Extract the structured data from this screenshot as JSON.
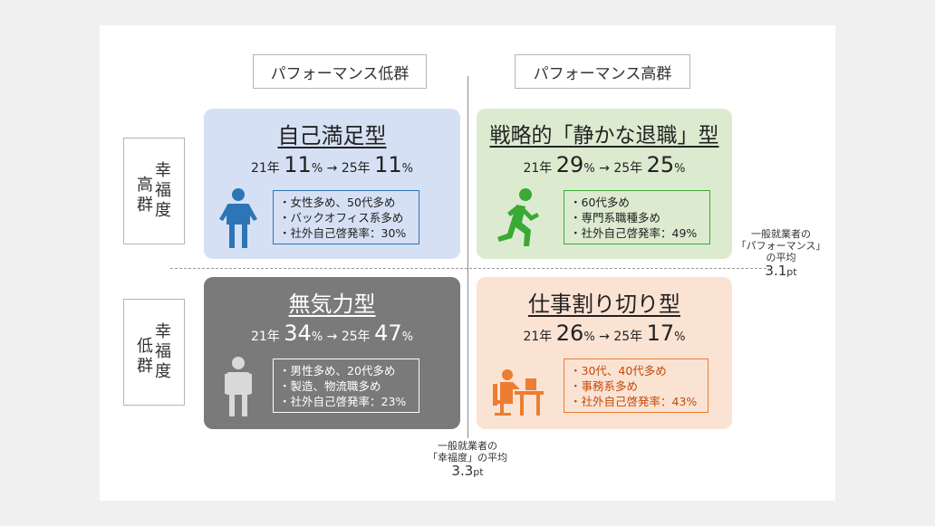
{
  "col_headers": {
    "low": "パフォーマンス低群",
    "high": "パフォーマンス高群"
  },
  "row_headers": {
    "high": {
      "group": "高群",
      "label": "幸福度"
    },
    "low": {
      "group": "低群",
      "label": "幸福度"
    }
  },
  "quadrants": {
    "top_left": {
      "title": "自己満足型",
      "rate": {
        "y1": "21年",
        "v1": "11",
        "y2": "25年",
        "v2": "11",
        "unit": "%",
        "arrow": "→"
      },
      "bullets": [
        "・女性多め、50代多め",
        "・バックオフィス系多め",
        "・社外自己啓発率：30%"
      ],
      "icon": "person-shrug-icon",
      "color": "#2e75b6"
    },
    "top_right": {
      "title": "戦略的「静かな退職」型",
      "rate": {
        "y1": "21年",
        "v1": "29",
        "y2": "25年",
        "v2": "25",
        "unit": "%",
        "arrow": "→"
      },
      "bullets": [
        "・60代多め",
        "・専門系職種多め",
        "・社外自己啓発率：49%"
      ],
      "icon": "running-person-icon",
      "color": "#3aa935"
    },
    "bottom_left": {
      "title": "無気力型",
      "rate": {
        "y1": "21年",
        "v1": "34",
        "y2": "25年",
        "v2": "47",
        "unit": "%",
        "arrow": "→"
      },
      "bullets": [
        "・男性多め、20代多め",
        "・製造、物流職多め",
        "・社外自己啓発率：23%"
      ],
      "icon": "standing-person-icon",
      "color": "#d9d9d9"
    },
    "bottom_right": {
      "title": "仕事割り切り型",
      "rate": {
        "y1": "21年",
        "v1": "26",
        "y2": "25年",
        "v2": "17",
        "unit": "%",
        "arrow": "→"
      },
      "bullets": [
        "・30代、40代多め",
        "・事務系多め",
        "・社外自己啓発率：43%"
      ],
      "icon": "desk-worker-icon",
      "color": "#ed7d31"
    }
  },
  "notes": {
    "performance": {
      "line1": "一般就業者の",
      "line2": "「パフォーマンス」",
      "line3": "の平均",
      "value": "3.1",
      "unit": "pt"
    },
    "happiness": {
      "line1": "一般就業者の",
      "line2": "「幸福度」の平均",
      "value": "3.3",
      "unit": "pt"
    }
  }
}
